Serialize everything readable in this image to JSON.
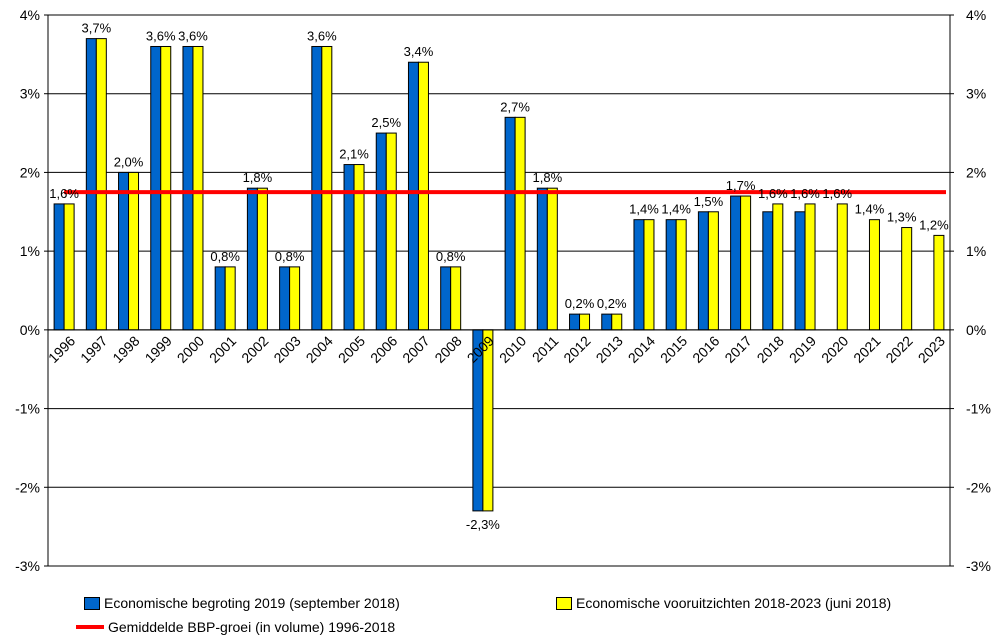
{
  "chart_data": {
    "type": "bar",
    "categories": [
      "1996",
      "1997",
      "1998",
      "1999",
      "2000",
      "2001",
      "2002",
      "2003",
      "2004",
      "2005",
      "2006",
      "2007",
      "2008",
      "2009",
      "2010",
      "2011",
      "2012",
      "2013",
      "2014",
      "2015",
      "2016",
      "2017",
      "2018",
      "2019",
      "2020",
      "2021",
      "2022",
      "2023"
    ],
    "series": [
      {
        "name": "Economische begroting 2019 (september 2018)",
        "color": "#0066CC",
        "values": [
          1.6,
          3.7,
          2.0,
          3.6,
          3.6,
          0.8,
          1.8,
          0.8,
          3.6,
          2.1,
          2.5,
          3.4,
          0.8,
          -2.3,
          2.7,
          1.8,
          0.2,
          0.2,
          1.4,
          1.4,
          1.5,
          1.7,
          1.5,
          1.5,
          null,
          null,
          null,
          null
        ]
      },
      {
        "name": "Economische vooruitzichten 2018-2023 (juni 2018)",
        "color": "#FFFF00",
        "values": [
          1.6,
          3.7,
          2.0,
          3.6,
          3.6,
          0.8,
          1.8,
          0.8,
          3.6,
          2.1,
          2.5,
          3.4,
          0.8,
          -2.3,
          2.7,
          1.8,
          0.2,
          0.2,
          1.4,
          1.4,
          1.5,
          1.7,
          1.6,
          1.6,
          1.6,
          1.4,
          1.3,
          1.2
        ]
      }
    ],
    "data_labels": [
      "1,6%",
      "3,7%",
      "2,0%",
      "3,6%",
      "3,6%",
      "0,8%",
      "1,8%",
      "0,8%",
      "3,6%",
      "2,1%",
      "2,5%",
      "3,4%",
      "0,8%",
      "-2,3%",
      "2,7%",
      "1,8%",
      "0,2%",
      "0,2%",
      "1,4%",
      "1,4%",
      "1,5%",
      "1,7%",
      "1,6%",
      "1,6%",
      "1,6%",
      "1,4%",
      "1,3%",
      "1,2%"
    ],
    "reference_line": {
      "name": "Gemiddelde BBP-groei (in volume) 1996-2018",
      "value": 1.75,
      "color": "#FF0000"
    },
    "ylim": [
      -3,
      4
    ],
    "y_ticks": [
      {
        "value": 4,
        "label": "4%"
      },
      {
        "value": 3,
        "label": "3%"
      },
      {
        "value": 2,
        "label": "2%"
      },
      {
        "value": 1,
        "label": "1%"
      },
      {
        "value": 0,
        "label": "0%"
      },
      {
        "value": -1,
        "label": "-1%"
      },
      {
        "value": -2,
        "label": "-2%"
      },
      {
        "value": -3,
        "label": "-3%"
      }
    ],
    "grid": "horizontal",
    "secondary_y_axis": true,
    "legend_position": "bottom",
    "title": "",
    "xlabel": "",
    "ylabel": ""
  }
}
